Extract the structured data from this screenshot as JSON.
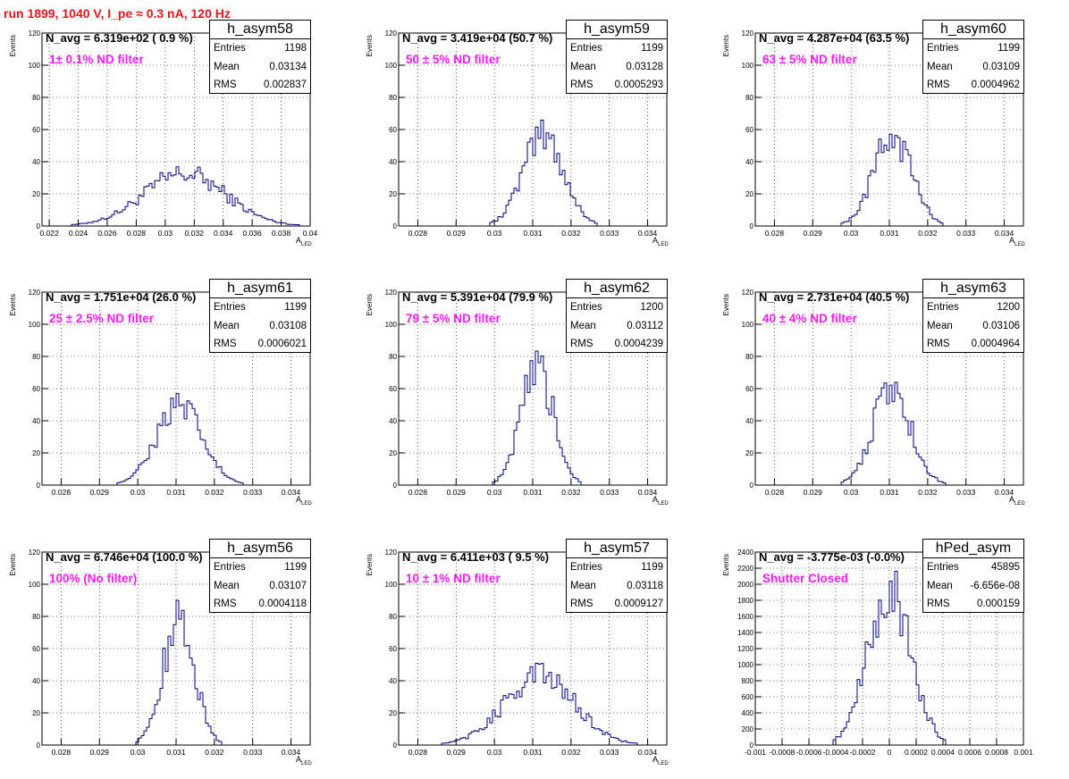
{
  "page": {
    "title": "run 1899,  1040 V, I_pe ≈ 0.3 nA, 120 Hz",
    "colors": {
      "title": "#e8161b",
      "histogram": "#00007f",
      "annotation": "#ff19ff",
      "grid": "#000000"
    }
  },
  "chart_data": [
    {
      "type": "histogram",
      "name": "h_asym58",
      "ylabel": "Events",
      "xlabel": "A_LED",
      "xlim": [
        0.0215,
        0.04
      ],
      "ylim": [
        0,
        120
      ],
      "xticks": [
        0.022,
        0.024,
        0.026,
        0.028,
        0.03,
        0.032,
        0.034,
        0.036,
        0.038,
        0.04
      ],
      "xtick_labels": [
        "0.022",
        "0.024",
        "0.026",
        "0.028",
        "0.03",
        "0.032",
        "0.034",
        "0.036",
        "0.038",
        "0.04"
      ],
      "yticks": [
        0,
        20,
        40,
        60,
        80,
        100,
        120
      ],
      "ytick_labels": [
        "0",
        "20",
        "40",
        "60",
        "80",
        "100",
        "120"
      ],
      "grid": true,
      "stats": {
        "Entries": "1198",
        "Mean": "0.03134",
        "RMS": "0.002837"
      },
      "n_avg": "N_avg = 6.319e+02 ( 0.9 %)",
      "annotation": "1± 0.1% ND filter",
      "peak": 38
    },
    {
      "type": "histogram",
      "name": "h_asym59",
      "ylabel": "Events",
      "xlabel": "A_LED",
      "xlim": [
        0.0275,
        0.0345
      ],
      "ylim": [
        0,
        120
      ],
      "xticks": [
        0.028,
        0.029,
        0.03,
        0.031,
        0.032,
        0.033,
        0.034
      ],
      "xtick_labels": [
        "0.028",
        "0.029",
        "0.03",
        "0.031",
        "0.032",
        "0.033",
        "0.034"
      ],
      "yticks": [
        0,
        20,
        40,
        60,
        80,
        100,
        120
      ],
      "ytick_labels": [
        "0",
        "20",
        "40",
        "60",
        "80",
        "100",
        "120"
      ],
      "grid": true,
      "stats": {
        "Entries": "1199",
        "Mean": "0.03128",
        "RMS": "0.0005293"
      },
      "n_avg": "N_avg = 3.419e+04 (50.7 %)",
      "annotation": "50 ± 5% ND filter",
      "peak": 66
    },
    {
      "type": "histogram",
      "name": "h_asym60",
      "ylabel": "Events",
      "xlabel": "A_LED",
      "xlim": [
        0.0275,
        0.0345
      ],
      "ylim": [
        0,
        120
      ],
      "xticks": [
        0.028,
        0.029,
        0.03,
        0.031,
        0.032,
        0.033,
        0.034
      ],
      "xtick_labels": [
        "0.028",
        "0.029",
        "0.03",
        "0.031",
        "0.032",
        "0.033",
        "0.034"
      ],
      "yticks": [
        0,
        20,
        40,
        60,
        80,
        100,
        120
      ],
      "ytick_labels": [
        "0",
        "20",
        "40",
        "60",
        "80",
        "100",
        "120"
      ],
      "grid": true,
      "stats": {
        "Entries": "1199",
        "Mean": "0.03109",
        "RMS": "0.0004962"
      },
      "n_avg": "N_avg = 4.287e+04 (63.5 %)",
      "annotation": "63 ± 5% ND filter",
      "peak": 66
    },
    {
      "type": "histogram",
      "name": "h_asym61",
      "ylabel": "Events",
      "xlabel": "A_LED",
      "xlim": [
        0.0275,
        0.0345
      ],
      "ylim": [
        0,
        120
      ],
      "xticks": [
        0.028,
        0.029,
        0.03,
        0.031,
        0.032,
        0.033,
        0.034
      ],
      "xtick_labels": [
        "0.028",
        "0.029",
        "0.03",
        "0.031",
        "0.032",
        "0.033",
        "0.034"
      ],
      "yticks": [
        0,
        20,
        40,
        60,
        80,
        100,
        120
      ],
      "ytick_labels": [
        "0",
        "20",
        "40",
        "60",
        "80",
        "100",
        "120"
      ],
      "grid": true,
      "stats": {
        "Entries": "1199",
        "Mean": "0.03108",
        "RMS": "0.0006021"
      },
      "n_avg": "N_avg = 1.751e+04 (26.0 %)",
      "annotation": "25 ± 2.5% ND filter",
      "peak": 57
    },
    {
      "type": "histogram",
      "name": "h_asym62",
      "ylabel": "Events",
      "xlabel": "A_LED",
      "xlim": [
        0.0275,
        0.0345
      ],
      "ylim": [
        0,
        120
      ],
      "xticks": [
        0.028,
        0.029,
        0.03,
        0.031,
        0.032,
        0.033,
        0.034
      ],
      "xtick_labels": [
        "0.028",
        "0.029",
        "0.03",
        "0.031",
        "0.032",
        "0.033",
        "0.034"
      ],
      "yticks": [
        0,
        20,
        40,
        60,
        80,
        100,
        120
      ],
      "ytick_labels": [
        "0",
        "20",
        "40",
        "60",
        "80",
        "100",
        "120"
      ],
      "grid": true,
      "stats": {
        "Entries": "1200",
        "Mean": "0.03112",
        "RMS": "0.0004239"
      },
      "n_avg": "N_avg = 5.391e+04 (79.9 %)",
      "annotation": "79 ± 5% ND filter",
      "peak": 84
    },
    {
      "type": "histogram",
      "name": "h_asym63",
      "ylabel": "Events",
      "xlabel": "A_LED",
      "xlim": [
        0.0275,
        0.0345
      ],
      "ylim": [
        0,
        120
      ],
      "xticks": [
        0.028,
        0.029,
        0.03,
        0.031,
        0.032,
        0.033,
        0.034
      ],
      "xtick_labels": [
        "0.028",
        "0.029",
        "0.03",
        "0.031",
        "0.032",
        "0.033",
        "0.034"
      ],
      "yticks": [
        0,
        20,
        40,
        60,
        80,
        100,
        120
      ],
      "ytick_labels": [
        "0",
        "20",
        "40",
        "60",
        "80",
        "100",
        "120"
      ],
      "grid": true,
      "stats": {
        "Entries": "1200",
        "Mean": "0.03106",
        "RMS": "0.0004964"
      },
      "n_avg": "N_avg = 2.731e+04 (40.5 %)",
      "annotation": "40 ± 4% ND filter",
      "peak": 70
    },
    {
      "type": "histogram",
      "name": "h_asym56",
      "ylabel": "Events",
      "xlabel": "A_LED",
      "xlim": [
        0.0275,
        0.0345
      ],
      "ylim": [
        0,
        120
      ],
      "xticks": [
        0.028,
        0.029,
        0.03,
        0.031,
        0.032,
        0.033,
        0.034
      ],
      "xtick_labels": [
        "0.028",
        "0.029",
        "0.03",
        "0.031",
        "0.032",
        "0.033",
        "0.034"
      ],
      "yticks": [
        0,
        20,
        40,
        60,
        80,
        100,
        120
      ],
      "ytick_labels": [
        "0",
        "20",
        "40",
        "60",
        "80",
        "100",
        "120"
      ],
      "grid": true,
      "stats": {
        "Entries": "1199",
        "Mean": "0.03107",
        "RMS": "0.0004118"
      },
      "n_avg": "N_avg = 6.746e+04 (100.0 %)",
      "annotation": "100% (No filter)",
      "peak": 90
    },
    {
      "type": "histogram",
      "name": "h_asym57",
      "ylabel": "Events",
      "xlabel": "A_LED",
      "xlim": [
        0.0275,
        0.0345
      ],
      "ylim": [
        0,
        120
      ],
      "xticks": [
        0.028,
        0.029,
        0.03,
        0.031,
        0.032,
        0.033,
        0.034
      ],
      "xtick_labels": [
        "0.028",
        "0.029",
        "0.03",
        "0.031",
        "0.032",
        "0.033",
        "0.034"
      ],
      "yticks": [
        0,
        20,
        40,
        60,
        80,
        100,
        120
      ],
      "ytick_labels": [
        "0",
        "20",
        "40",
        "60",
        "80",
        "100",
        "120"
      ],
      "grid": true,
      "stats": {
        "Entries": "1199",
        "Mean": "0.03118",
        "RMS": "0.0009127"
      },
      "n_avg": "N_avg = 6.411e+03 ( 9.5 %)",
      "annotation": "10 ± 1% ND filter",
      "peak": 51
    },
    {
      "type": "histogram",
      "name": "hPed_asym",
      "ylabel": "Events",
      "xlabel": "",
      "xlim": [
        -0.001,
        0.001
      ],
      "ylim": [
        0,
        2400
      ],
      "xticks": [
        -0.001,
        -0.0008,
        -0.0006,
        -0.0004,
        -0.0002,
        0,
        0.0002,
        0.0004,
        0.0006,
        0.0008,
        0.001
      ],
      "xtick_labels": [
        "-0.001",
        "-0.0008",
        "-0.0006",
        "-0.0004",
        "-0.0002",
        "0",
        "0.0002",
        "0.0004",
        "0.0006",
        "0.0008",
        "0.001"
      ],
      "yticks": [
        0,
        200,
        400,
        600,
        800,
        1000,
        1200,
        1400,
        1600,
        1800,
        2000,
        2200,
        2400
      ],
      "ytick_labels": [
        "0",
        "200",
        "400",
        "600",
        "800",
        "1000",
        "1200",
        "1400",
        "1600",
        "1800",
        "2000",
        "2200",
        "2400"
      ],
      "grid": true,
      "stats": {
        "Entries": "45895",
        "Mean": "-6.656e-08",
        "RMS": "0.000159"
      },
      "n_avg": "N_avg = -3.775e-03 (-0.0%)",
      "annotation": "Shutter Closed",
      "peak": 2250
    }
  ]
}
